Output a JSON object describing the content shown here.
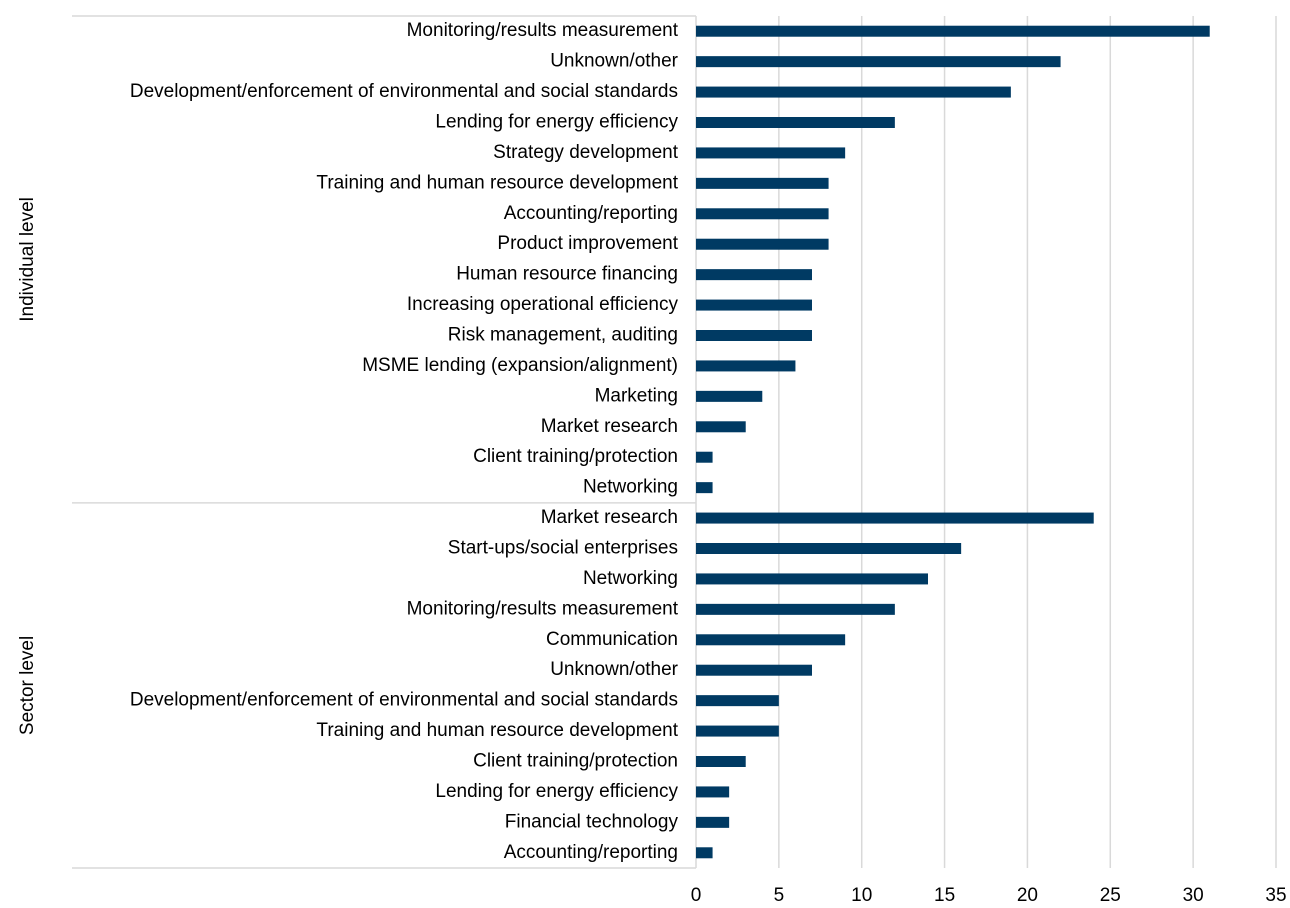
{
  "chart_data": {
    "type": "bar",
    "orientation": "horizontal",
    "color": "#003a63",
    "groups": [
      {
        "name": "Individual level",
        "categories": [
          "Monitoring/results measurement",
          "Unknown/other",
          "Development/enforcement of environmental and social standards",
          "Lending for energy efficiency",
          "Strategy development",
          "Training and human resource development",
          "Accounting/reporting",
          "Product improvement",
          "Human resource financing",
          "Increasing operational efficiency",
          "Risk management, auditing",
          "MSME lending (expansion/alignment)",
          "Marketing",
          "Market research",
          "Client training/protection",
          "Networking"
        ],
        "values": [
          31,
          22,
          19,
          12,
          9,
          8,
          8,
          8,
          7,
          7,
          7,
          6,
          4,
          3,
          1,
          1
        ]
      },
      {
        "name": "Sector level",
        "categories": [
          "Market research",
          "Start-ups/social enterprises",
          "Networking",
          "Monitoring/results measurement",
          "Communication",
          "Unknown/other",
          "Development/enforcement of environmental and social standards",
          "Training and human resource development",
          "Client training/protection",
          "Lending for energy efficiency",
          "Financial technology",
          "Accounting/reporting"
        ],
        "values": [
          24,
          16,
          14,
          12,
          9,
          7,
          5,
          5,
          3,
          2,
          2,
          1
        ]
      }
    ],
    "xlim": [
      0,
      35
    ],
    "xticks": [
      0,
      5,
      10,
      15,
      20,
      25,
      30,
      35
    ],
    "grid": true
  }
}
